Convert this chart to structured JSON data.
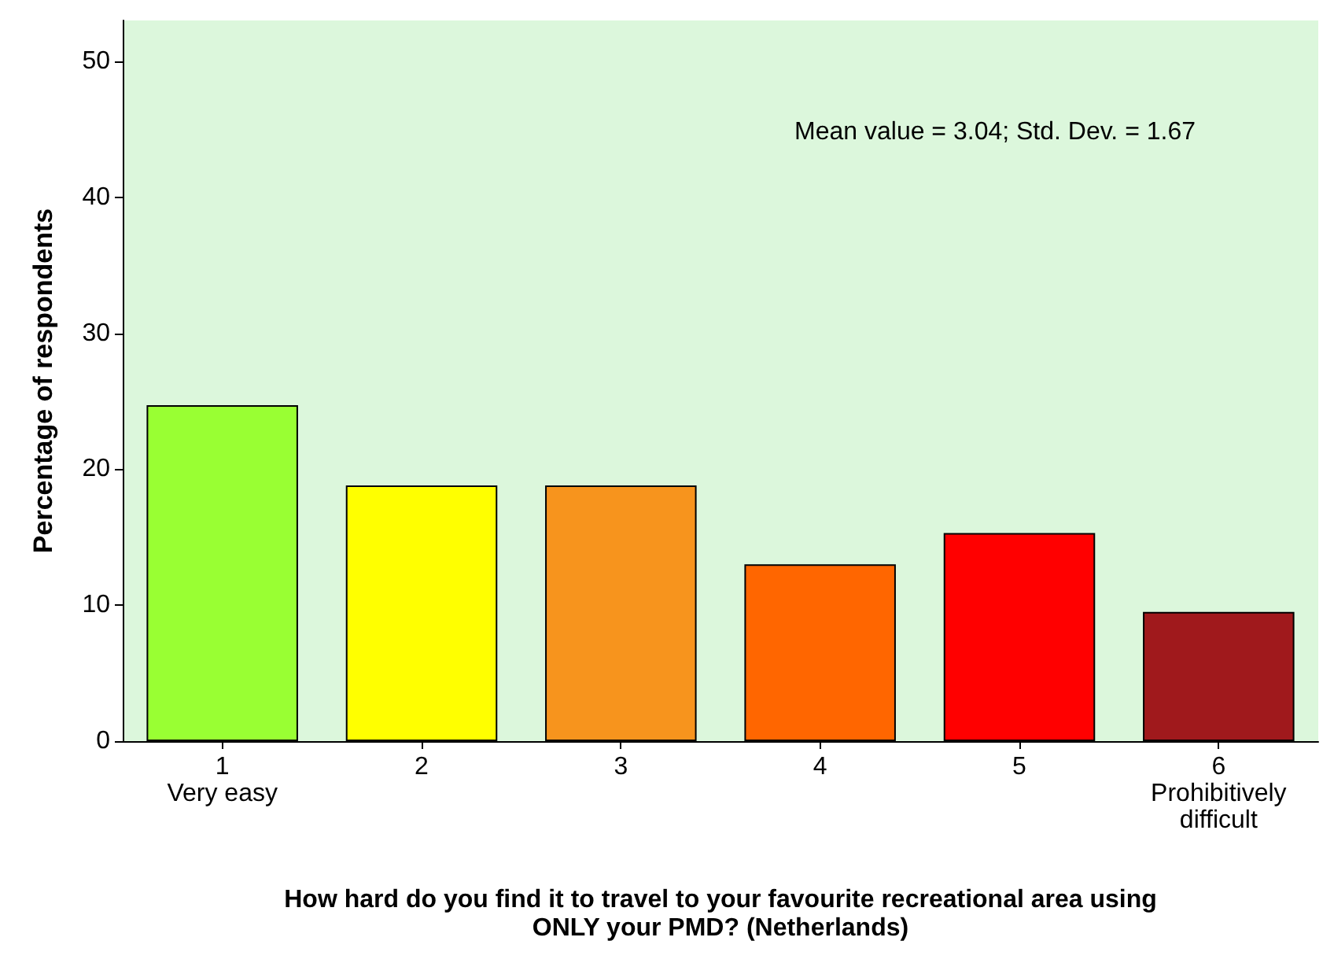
{
  "chart_data": {
    "type": "bar",
    "xlabel": "How hard do you find it to travel to your favourite recreational area using\nONLY your PMD? (Netherlands)",
    "ylabel": "Percentage of respondents",
    "categories": [
      "1\nVery easy",
      "2",
      "3",
      "4",
      "5",
      "6\nProhibitively\ndifficult"
    ],
    "values": [
      24.7,
      18.8,
      18.8,
      13.0,
      15.3,
      9.5
    ],
    "colors": [
      "#99ff33",
      "#ffff00",
      "#f7941d",
      "#ff6600",
      "#ff0000",
      "#a0191c"
    ],
    "ylim": [
      0,
      53
    ],
    "yticks": [
      0,
      10,
      20,
      30,
      40,
      50
    ],
    "grid": false,
    "annotations": [
      "Mean value = 3.04; Std. Dev. = 1.67"
    ]
  }
}
